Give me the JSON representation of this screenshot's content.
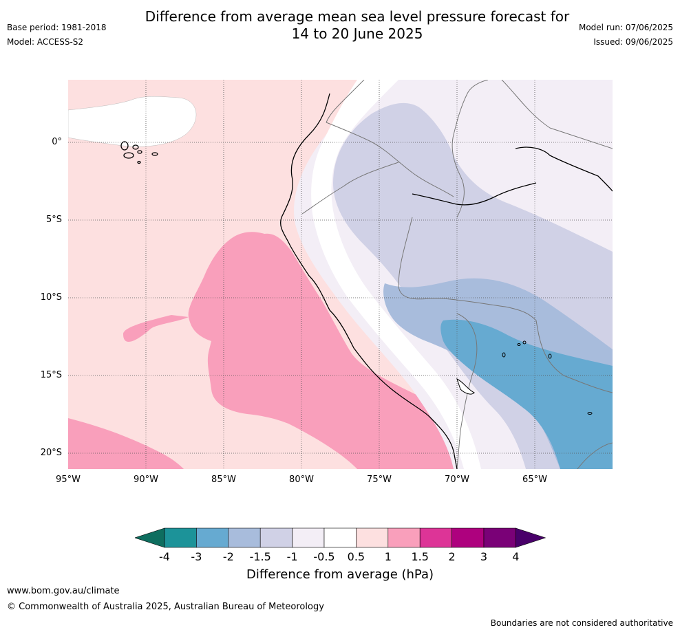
{
  "title_line1": "Difference from average mean sea level pressure forecast for",
  "title_line2": "14 to 20 June 2025",
  "base_period": "Base period: 1981-2018",
  "model": "Model: ACCESS-S2",
  "model_run": "Model run: 07/06/2025",
  "issued": "Issued: 09/06/2025",
  "lat_labels": [
    "0°",
    "5°S",
    "10°S",
    "15°S",
    "20°S"
  ],
  "lon_labels": [
    "95°W",
    "90°W",
    "85°W",
    "80°W",
    "75°W",
    "70°W",
    "65°W"
  ],
  "colorbar": {
    "ticks": [
      "-4",
      "-3",
      "-2",
      "-1.5",
      "-1",
      "-0.5",
      "0.5",
      "1",
      "1.5",
      "2",
      "3",
      "4"
    ],
    "title": "Difference from average (hPa)",
    "colors": {
      "below_min": "#0e6e5f",
      "bins": [
        "#1c9399",
        "#66aad1",
        "#a8bcdc",
        "#d0d1e6",
        "#f3eef6",
        "#ffffff",
        "#fde0e0",
        "#f99fbb",
        "#dd3497",
        "#ae017e",
        "#7a0177"
      ],
      "above_max": "#49006a"
    }
  },
  "map_colors": {
    "ocean_base": "#fde0e0",
    "pink_15": "#f99fbb",
    "white_neutral": "#ffffff",
    "lavender_1": "#f3eef6",
    "lilac_15": "#d0d1e6",
    "blue_2": "#a8bcdc",
    "blue_3": "#66aad1",
    "coast": "#000000",
    "borders": "#777777"
  },
  "footer": {
    "url": "www.bom.gov.au/climate",
    "copyright": "© Commonwealth of Australia 2025, Australian Bureau of Meteorology",
    "note": "Boundaries are not considered authoritative"
  }
}
